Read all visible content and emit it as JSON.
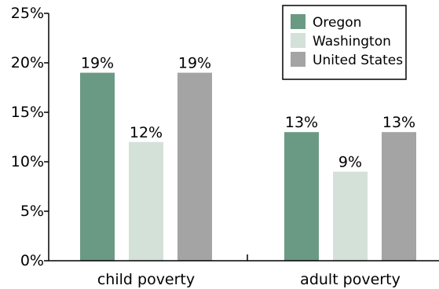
{
  "chart_data": {
    "type": "bar",
    "categories": [
      "child poverty",
      "adult poverty"
    ],
    "series": [
      {
        "name": "Oregon",
        "values": [
          19,
          13
        ],
        "labels": [
          "19%",
          "13%"
        ],
        "color": "#6b9a84"
      },
      {
        "name": "Washington",
        "values": [
          12,
          9
        ],
        "labels": [
          "12%",
          "9%"
        ],
        "color": "#d4e1d8"
      },
      {
        "name": "United States",
        "values": [
          19,
          13
        ],
        "labels": [
          "19%",
          "13%"
        ],
        "color": "#a4a4a4"
      }
    ],
    "yticks": [
      0,
      5,
      10,
      15,
      20,
      25
    ],
    "ytick_labels": [
      "0%",
      "5%",
      "10%",
      "15%",
      "20%",
      "25%"
    ],
    "ylim": [
      0,
      25
    ],
    "title": "",
    "xlabel": "",
    "ylabel": "",
    "grid": false,
    "legend_position": "top-right"
  }
}
